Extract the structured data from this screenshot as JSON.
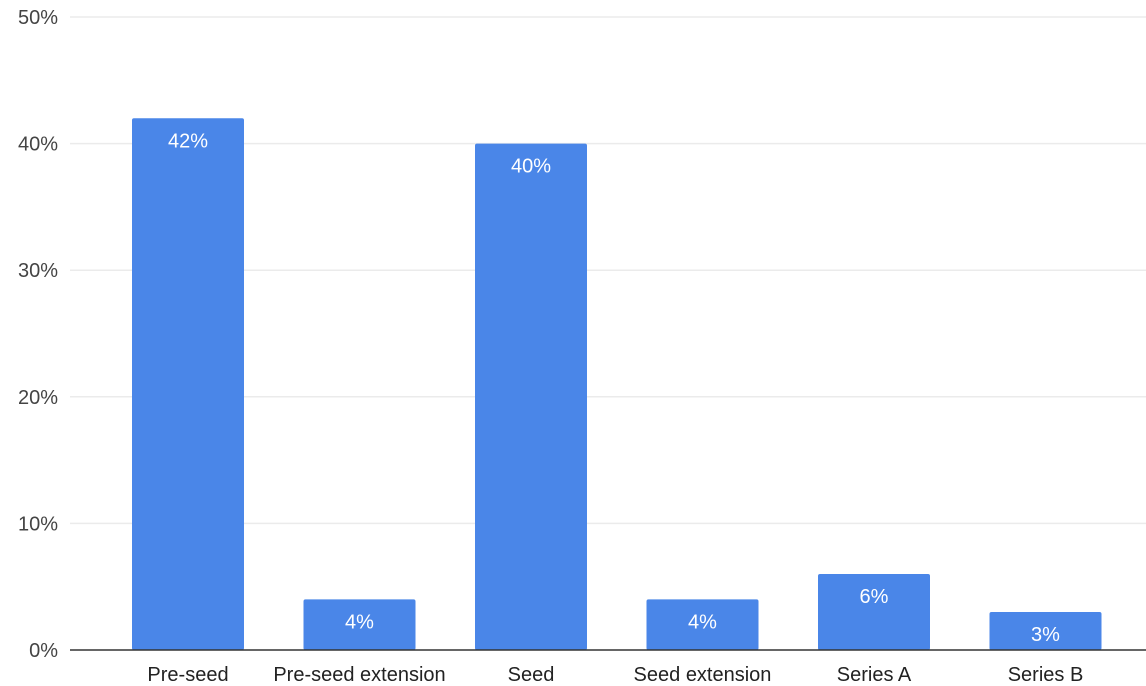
{
  "chart_data": {
    "type": "bar",
    "title": "",
    "xlabel": "",
    "ylabel": "",
    "categories": [
      "Pre-seed",
      "Pre-seed extension",
      "Seed",
      "Seed extension",
      "Series A",
      "Series B"
    ],
    "values": [
      42,
      4,
      40,
      4,
      6,
      3
    ],
    "data_labels": [
      "42%",
      "4%",
      "40%",
      "4%",
      "6%",
      "3%"
    ],
    "ylim": [
      0,
      50
    ],
    "yticks": [
      0,
      10,
      20,
      30,
      40,
      50
    ],
    "ytick_labels": [
      "0%",
      "10%",
      "20%",
      "30%",
      "40%",
      "50%"
    ],
    "grid": true,
    "legend": "none",
    "colors": {
      "bar": "#4a86e8",
      "grid": "#ebebeb",
      "axis": "#333333"
    }
  }
}
